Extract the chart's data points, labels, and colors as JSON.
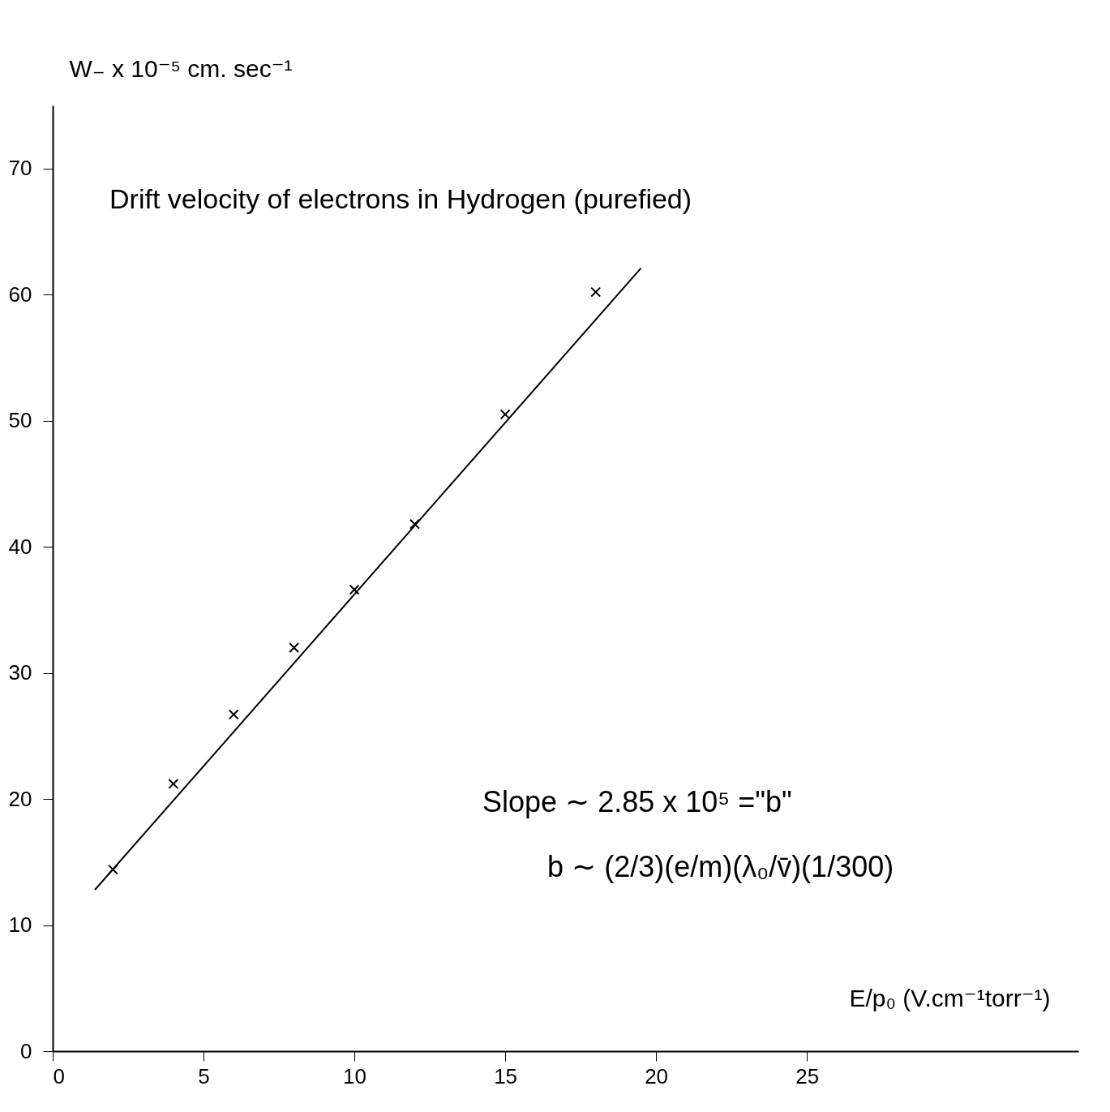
{
  "chart_data": {
    "type": "scatter",
    "title": "Drift velocity of electrons in Hydrogen (purefied)",
    "xlabel": "E/p₀ (V.cm⁻¹torr⁻¹)",
    "ylabel": "W₋ x 10⁻⁵ cm. sec⁻¹",
    "x": [
      2,
      4,
      6,
      8,
      10,
      12,
      15,
      18
    ],
    "series": [
      {
        "color": "#000000",
        "values": [
          14.4,
          21.2,
          26.7,
          32.0,
          36.6,
          41.8,
          50.5,
          60.2
        ]
      },
      {
        "type": "line",
        "color": "#000000",
        "marker": "none",
        "x": [
          1.4,
          19.5
        ],
        "values": [
          12.8,
          62.1
        ]
      }
    ],
    "annotations": [
      "Slope ∼ 2.85 x 10⁵ =\"b\"",
      "b ∼ (2/3)(e/m)(λ₀/v̄)(1/300)"
    ],
    "xlim": [
      0,
      34
    ],
    "ylim": [
      0,
      75
    ],
    "xticks": [
      0,
      5,
      10,
      15,
      20,
      25
    ],
    "yticks": [
      0,
      10,
      20,
      30,
      40,
      50,
      60,
      70
    ],
    "marker": "cross",
    "grid": false
  }
}
